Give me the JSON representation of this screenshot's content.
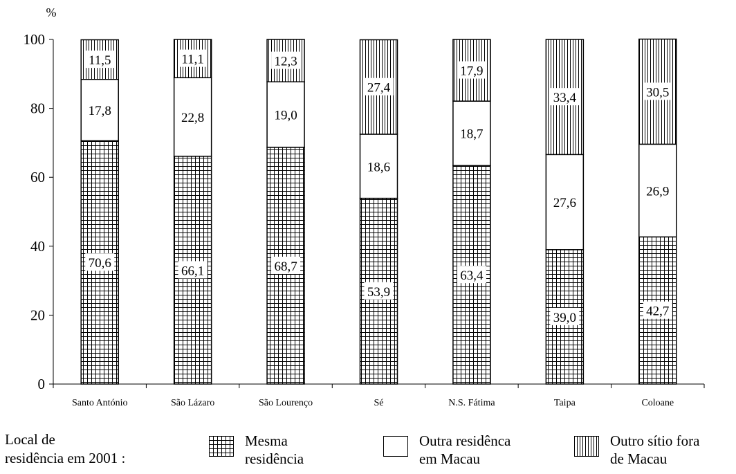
{
  "chart_data": {
    "type": "bar",
    "stacked": true,
    "ylabel": "%",
    "ylim": [
      0,
      100
    ],
    "yticks": [
      0,
      20,
      40,
      60,
      80,
      100
    ],
    "grid": false,
    "legend_position": "bottom",
    "categories": [
      "Santo António",
      "São Lázaro",
      "São Lourenço",
      "Sé",
      "N.S. Fátima",
      "Taipa",
      "Coloane"
    ],
    "series": [
      {
        "name": "Mesma\nresidência",
        "pattern": "grid",
        "values": [
          70.6,
          66.1,
          68.7,
          53.9,
          63.4,
          39.0,
          42.7
        ],
        "labels": [
          "70,6",
          "66,1",
          "68,7",
          "53,9",
          "63,4",
          "39,0",
          "42,7"
        ]
      },
      {
        "name": "Outra residênca\nem Macau",
        "pattern": "none",
        "values": [
          17.8,
          22.8,
          19.0,
          18.6,
          18.7,
          27.6,
          26.9
        ],
        "labels": [
          "17,8",
          "22,8",
          "19,0",
          "18,6",
          "18,7",
          "27,6",
          "26,9"
        ]
      },
      {
        "name": "Outro sítio fora\nde Macau",
        "pattern": "vertical",
        "values": [
          11.5,
          11.1,
          12.3,
          27.4,
          17.9,
          33.4,
          30.5
        ],
        "labels": [
          "11,5",
          "11,1",
          "12,3",
          "27,4",
          "17,9",
          "33,4",
          "30,5"
        ]
      }
    ],
    "legend_title": "Local de\nresidência em 2001 :"
  }
}
